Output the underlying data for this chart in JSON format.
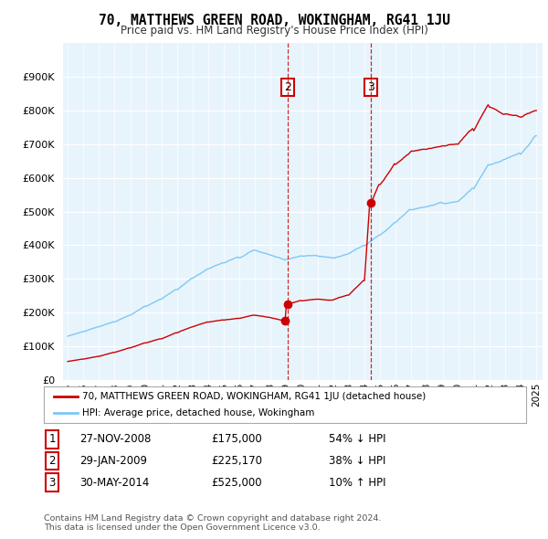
{
  "title": "70, MATTHEWS GREEN ROAD, WOKINGHAM, RG41 1JU",
  "subtitle": "Price paid vs. HM Land Registry's House Price Index (HPI)",
  "legend_label_red": "70, MATTHEWS GREEN ROAD, WOKINGHAM, RG41 1JU (detached house)",
  "legend_label_blue": "HPI: Average price, detached house, Wokingham",
  "transactions": [
    {
      "num": 1,
      "date": "27-NOV-2008",
      "price": "£175,000",
      "pct": "54% ↓ HPI"
    },
    {
      "num": 2,
      "date": "29-JAN-2009",
      "price": "£225,170",
      "pct": "38% ↓ HPI"
    },
    {
      "num": 3,
      "date": "30-MAY-2014",
      "price": "£525,000",
      "pct": "10% ↑ HPI"
    }
  ],
  "footnote1": "Contains HM Land Registry data © Crown copyright and database right 2024.",
  "footnote2": "This data is licensed under the Open Government Licence v3.0.",
  "vline1_x": 2009.08,
  "vline2_x": 2014.42,
  "marker1_x": 2008.92,
  "marker1_y": 175000,
  "marker2_x": 2009.08,
  "marker2_y": 225170,
  "marker3_x": 2014.42,
  "marker3_y": 525000,
  "ylim": [
    0,
    1000000
  ],
  "xlim_start": 1994.7,
  "xlim_end": 2025.4,
  "hpi_color": "#7ec8f5",
  "price_color": "#cc0000",
  "vline_color": "#cc0000",
  "background_color": "#ffffff",
  "chart_bg_color": "#e8f4fc",
  "grid_color": "#ffffff"
}
